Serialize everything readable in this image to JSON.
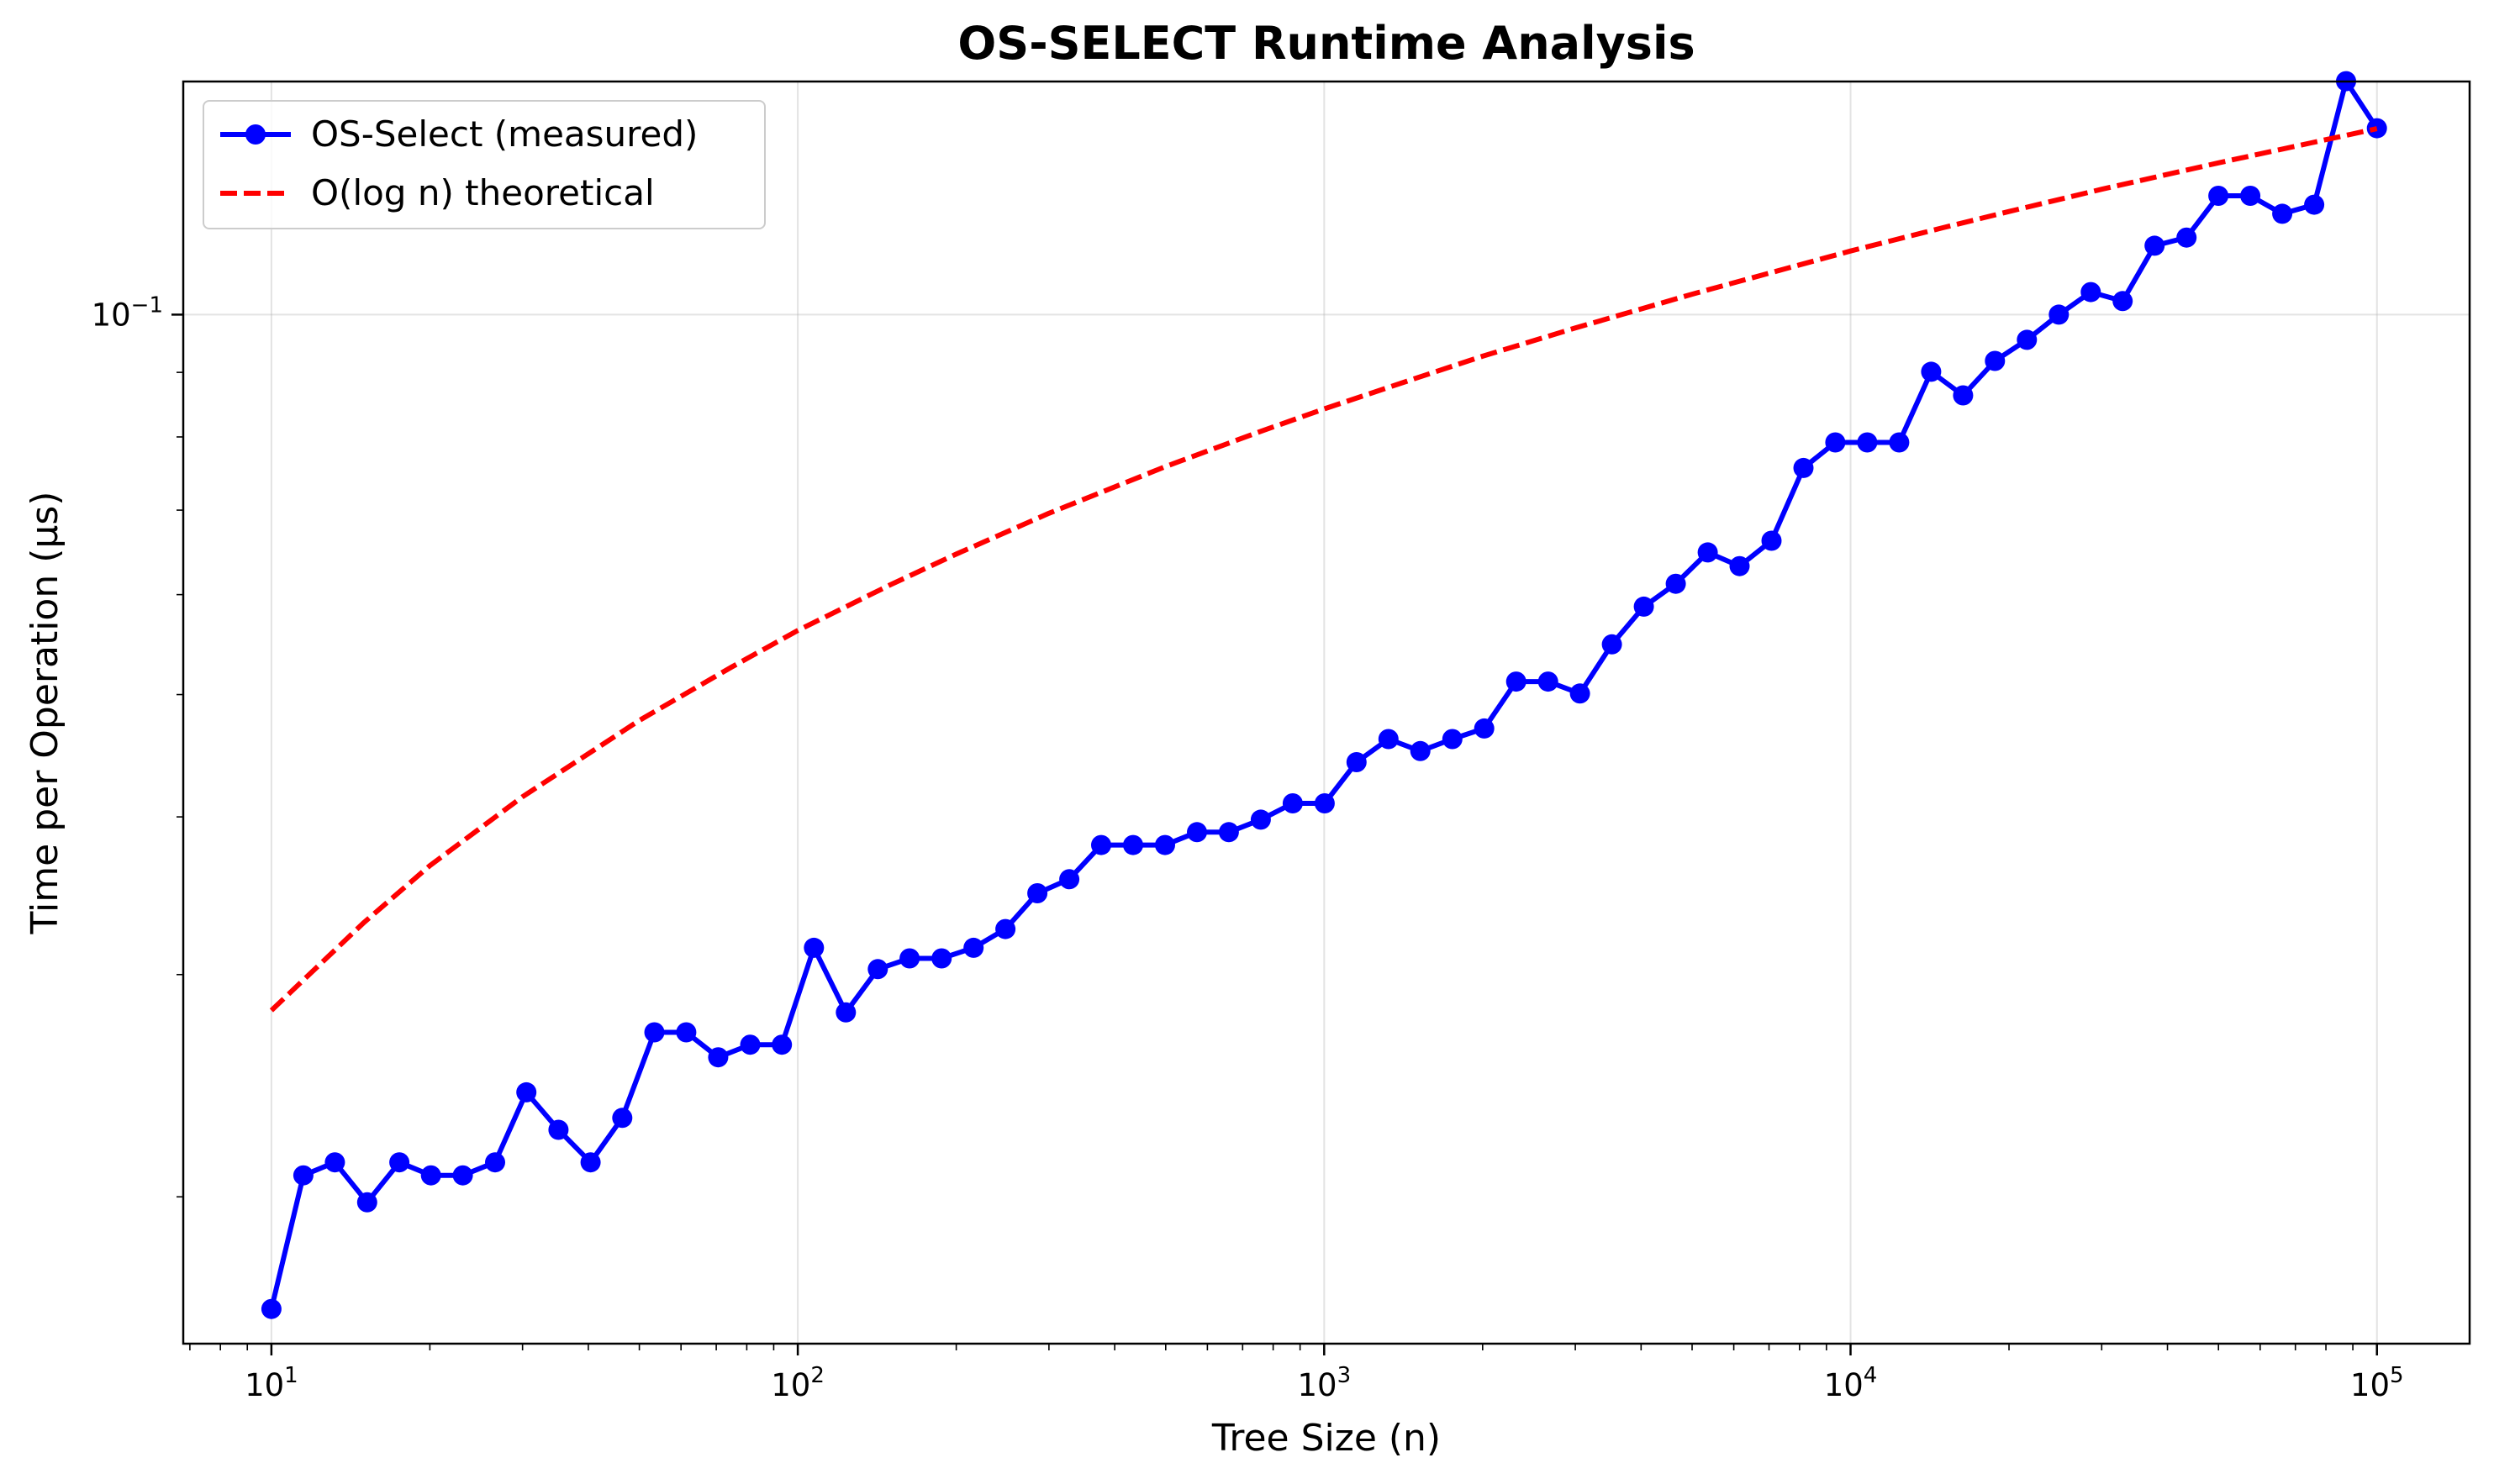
{
  "chart_data": {
    "type": "line",
    "title": "OS-SELECT Runtime Analysis",
    "xlabel": "Tree Size (n)",
    "ylabel": "Time per Operation (µs)",
    "xscale": "log",
    "yscale": "log",
    "xlim": [
      6.8,
      150000
    ],
    "ylim": [
      0.0153,
      0.153
    ],
    "grid": true,
    "legend_position": "top-left",
    "x_ticks": [
      {
        "value": 10,
        "base": "10",
        "exp": "1"
      },
      {
        "value": 100,
        "base": "10",
        "exp": "2"
      },
      {
        "value": 1000,
        "base": "10",
        "exp": "3"
      },
      {
        "value": 10000,
        "base": "10",
        "exp": "4"
      },
      {
        "value": 100000,
        "base": "10",
        "exp": "5"
      }
    ],
    "y_ticks": [
      {
        "value": 0.1,
        "base": "10",
        "exp": "−1"
      }
    ],
    "series": [
      {
        "name": "OS-Select (measured)",
        "color": "#0000ff",
        "style": "solid",
        "marker": "circle",
        "x": [
          10,
          11.5,
          13.2,
          15.2,
          17.5,
          20.1,
          23.1,
          26.6,
          30.5,
          35.1,
          40.4,
          46.4,
          53.4,
          61.4,
          70.6,
          81.2,
          93.3,
          107.3,
          123.4,
          141.9,
          163.1,
          187.6,
          215.7,
          248,
          285.2,
          327.9,
          377,
          433.5,
          498.5,
          573.2,
          659.1,
          757.9,
          871.4,
          1002,
          1152,
          1325,
          1523,
          1752,
          2014,
          2316,
          2663,
          3062,
          3521,
          4049,
          4655,
          5353,
          6155,
          7077,
          8138,
          9357,
          10760,
          12372,
          14226,
          16358,
          18809,
          21627,
          24868,
          28595,
          32879,
          37806,
          43471,
          49985,
          57475,
          66088,
          75991,
          87378,
          100000
        ],
        "y": [
          0.0163,
          0.0208,
          0.0213,
          0.0198,
          0.0213,
          0.0208,
          0.0208,
          0.0213,
          0.0242,
          0.0226,
          0.0213,
          0.0231,
          0.027,
          0.027,
          0.0258,
          0.0264,
          0.0264,
          0.0315,
          0.028,
          0.0303,
          0.0309,
          0.0309,
          0.0315,
          0.0326,
          0.0348,
          0.0357,
          0.038,
          0.038,
          0.038,
          0.0389,
          0.0389,
          0.0398,
          0.041,
          0.041,
          0.0442,
          0.0461,
          0.0451,
          0.0461,
          0.047,
          0.0512,
          0.0512,
          0.0501,
          0.0548,
          0.0587,
          0.0612,
          0.0648,
          0.0632,
          0.0662,
          0.0756,
          0.0792,
          0.0792,
          0.0792,
          0.0901,
          0.0863,
          0.0919,
          0.0955,
          0.1,
          0.1042,
          0.1025,
          0.1134,
          0.1151,
          0.1242,
          0.1242,
          0.1202,
          0.1222,
          0.1531,
          0.1405
        ]
      },
      {
        "name": "O(log n) theoretical",
        "color": "#ff0000",
        "style": "dashed",
        "marker": "none",
        "x": [
          10,
          15,
          20,
          30,
          50,
          75,
          100,
          150,
          200,
          300,
          500,
          750,
          1000,
          1500,
          2000,
          3000,
          5000,
          7500,
          10000,
          15000,
          20000,
          30000,
          50000,
          75000,
          100000
        ],
        "y": [
          0.0281,
          0.033,
          0.0366,
          0.0415,
          0.0477,
          0.0526,
          0.0562,
          0.0611,
          0.0646,
          0.0696,
          0.0758,
          0.0807,
          0.0842,
          0.0891,
          0.0927,
          0.0976,
          0.1038,
          0.1087,
          0.1123,
          0.1172,
          0.1207,
          0.1257,
          0.1319,
          0.1368,
          0.1404
        ]
      }
    ]
  }
}
